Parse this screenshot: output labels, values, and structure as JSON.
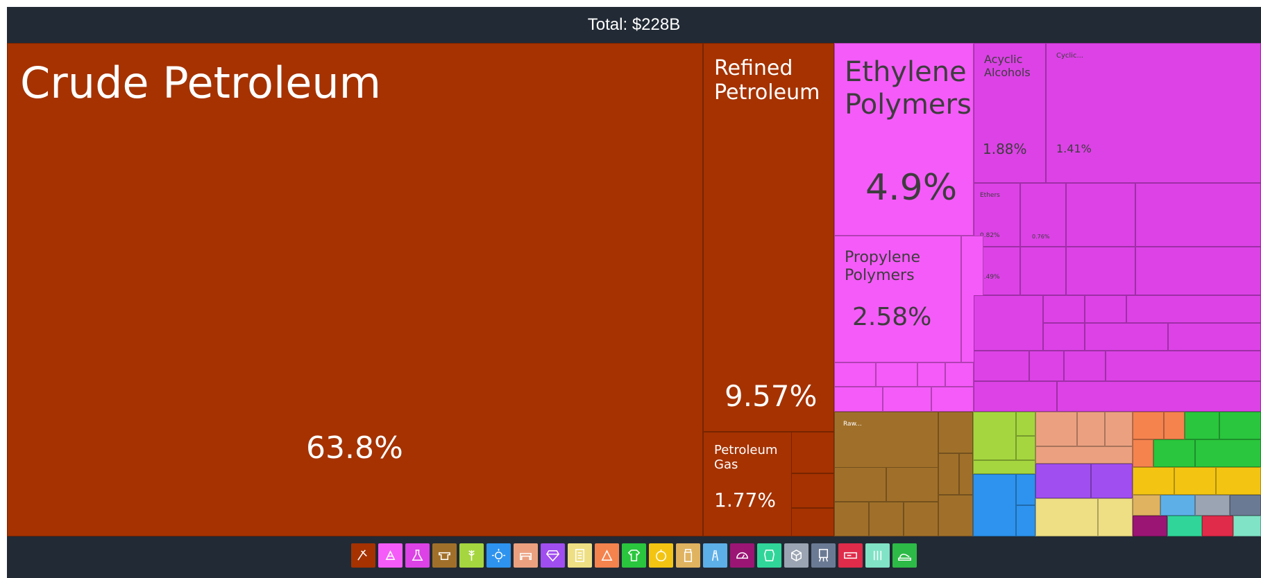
{
  "header": {
    "total_label": "Total: $228B"
  },
  "chart_data": {
    "type": "treemap",
    "total": "Total: $228B",
    "nodes": [
      {
        "label": "Crude Petroleum",
        "value": 63.8,
        "value_label": "63.8%",
        "color": "#a53200"
      },
      {
        "label": "Refined\nPetroleum",
        "value": 9.57,
        "value_label": "9.57%",
        "color": "#a53200"
      },
      {
        "label": "Petroleum\nGas",
        "value": 1.77,
        "value_label": "1.77%",
        "color": "#a53200"
      },
      {
        "label": "Ethylene\nPolymers",
        "value": 4.9,
        "value_label": "4.9%",
        "color": "#f55bf9"
      },
      {
        "label": "Propylene\nPolymers",
        "value": 2.58,
        "value_label": "2.58%",
        "color": "#f55bf9"
      },
      {
        "label": "Acyclic\nAlcohols",
        "value": 1.88,
        "value_label": "1.88%",
        "color": "#dc42e6"
      },
      {
        "label": "Cyclic...",
        "value": 1.41,
        "value_label": "1.41%",
        "color": "#dc42e6"
      },
      {
        "label": "Ethers",
        "value": 0.82,
        "value_label": "0.82%",
        "color": "#dc42e6"
      },
      {
        "label": "",
        "value": 0.76,
        "value_label": "0.76%",
        "color": "#dc42e6"
      },
      {
        "label": "",
        "value": 0.49,
        "value_label": "0.49%",
        "color": "#dc42e6"
      },
      {
        "label": "Raw...",
        "value": null,
        "value_label": "",
        "color": "#a0702a"
      }
    ]
  },
  "legend_icons": [
    {
      "name": "mineral-products-icon",
      "color": "#a53200"
    },
    {
      "name": "plastics-rubbers-icon",
      "color": "#f55bf9"
    },
    {
      "name": "chemical-products-icon",
      "color": "#dc42e6"
    },
    {
      "name": "metals-icon",
      "color": "#a0702a"
    },
    {
      "name": "vegetable-products-icon",
      "color": "#a5d63f"
    },
    {
      "name": "machines-icon",
      "color": "#2d93ee"
    },
    {
      "name": "animal-hides-icon",
      "color": "#eba180"
    },
    {
      "name": "precious-metals-icon",
      "color": "#a04ef0"
    },
    {
      "name": "paper-goods-icon",
      "color": "#eedf84"
    },
    {
      "name": "stone-glass-icon",
      "color": "#f5834e"
    },
    {
      "name": "textiles-icon",
      "color": "#2ac63d"
    },
    {
      "name": "foodstuffs-icon",
      "color": "#f3c512"
    },
    {
      "name": "wood-products-icon",
      "color": "#e0b360"
    },
    {
      "name": "transportation-icon",
      "color": "#5dafe8"
    },
    {
      "name": "instruments-icon",
      "color": "#9b1575"
    },
    {
      "name": "animal-products-icon",
      "color": "#30d699"
    },
    {
      "name": "miscellaneous-icon",
      "color": "#9ba4b2"
    },
    {
      "name": "arts-antiques-icon",
      "color": "#6b7a94"
    },
    {
      "name": "weapons-icon",
      "color": "#e02b4a"
    },
    {
      "name": "animal-vegetable-bi-products-icon",
      "color": "#80e3c5"
    },
    {
      "name": "footwear-headwear-icon",
      "color": "#2dba47"
    }
  ]
}
